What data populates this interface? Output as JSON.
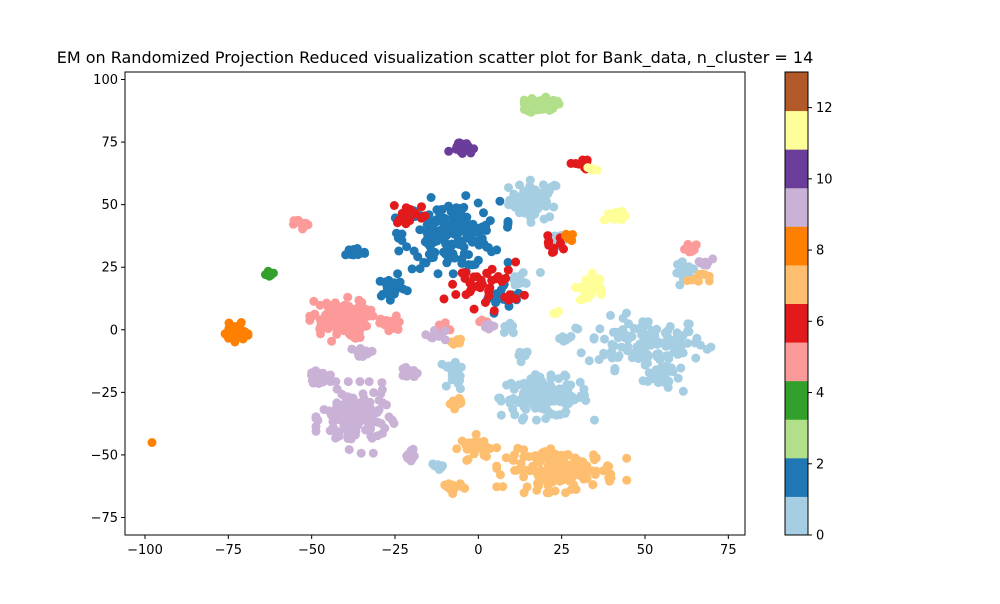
{
  "chart_data": {
    "type": "scatter",
    "title": "EM on Randomized Projection Reduced visualization scatter plot for Bank_data, n_cluster = 14",
    "xlabel": "",
    "ylabel": "",
    "xlim": [
      -106,
      80
    ],
    "ylim": [
      -82,
      103
    ],
    "xticks": [
      -100,
      -75,
      -50,
      -25,
      0,
      25,
      50,
      75
    ],
    "yticks": [
      -75,
      -50,
      -25,
      0,
      25,
      50,
      75,
      100
    ],
    "grid": false,
    "colorbar": {
      "range": [
        0,
        13
      ],
      "ticks": [
        0,
        2,
        4,
        6,
        8,
        10,
        12
      ],
      "colors": [
        "#a6cee3",
        "#1f78b4",
        "#b2df8a",
        "#33a02c",
        "#fb9a99",
        "#e31a1c",
        "#fdbf6f",
        "#ff7f00",
        "#cab2d6",
        "#6a3d9a",
        "#ffff99",
        "#b15928"
      ]
    },
    "clusters": [
      {
        "label": 0,
        "cx": 17,
        "cy": 52,
        "rx": 7,
        "ry": 7,
        "n": 60
      },
      {
        "label": 0,
        "cx": 50,
        "cy": -5,
        "rx": 16,
        "ry": 9,
        "n": 130
      },
      {
        "label": 0,
        "cx": 55,
        "cy": -18,
        "rx": 5,
        "ry": 6,
        "n": 30
      },
      {
        "label": 0,
        "cx": 23,
        "cy": 36,
        "rx": 2,
        "ry": 3,
        "n": 8
      },
      {
        "label": 0,
        "cx": 13,
        "cy": 20,
        "rx": 5,
        "ry": 3,
        "n": 10
      },
      {
        "label": 0,
        "cx": -7,
        "cy": -14,
        "rx": 3,
        "ry": 2,
        "n": 10
      },
      {
        "label": 0,
        "cx": 26,
        "cy": -3,
        "rx": 2,
        "ry": 2,
        "n": 6
      },
      {
        "label": 1,
        "cx": 20,
        "cy": -27,
        "rx": 12,
        "ry": 7,
        "n": 140
      },
      {
        "label": 1,
        "cx": 62,
        "cy": 22,
        "rx": 3,
        "ry": 5,
        "n": 15
      },
      {
        "label": 1,
        "cx": -7,
        "cy": -21,
        "rx": 2,
        "ry": 3,
        "n": 10
      },
      {
        "label": 1,
        "cx": -12,
        "cy": -54,
        "rx": 2,
        "ry": 2,
        "n": 8
      },
      {
        "label": 1,
        "cx": 13,
        "cy": -12,
        "rx": 2,
        "ry": 4,
        "n": 8
      },
      {
        "label": 1,
        "cx": 9,
        "cy": 0,
        "rx": 3,
        "ry": 2,
        "n": 6
      },
      {
        "label": 2,
        "cx": -8,
        "cy": 38,
        "rx": 13,
        "ry": 12,
        "n": 170
      },
      {
        "label": 2,
        "cx": -37,
        "cy": 31,
        "rx": 3,
        "ry": 2,
        "n": 25
      },
      {
        "label": 2,
        "cx": -26,
        "cy": 17,
        "rx": 4,
        "ry": 4,
        "n": 25
      },
      {
        "label": 2,
        "cx": 8,
        "cy": 12,
        "rx": 5,
        "ry": 6,
        "n": 20
      },
      {
        "label": 3,
        "cx": 19,
        "cy": 90,
        "rx": 4,
        "ry": 3,
        "n": 40
      },
      {
        "label": 4,
        "cx": -63,
        "cy": 23,
        "rx": 1.5,
        "ry": 1.5,
        "n": 8
      },
      {
        "label": 5,
        "cx": -42,
        "cy": 4,
        "rx": 8,
        "ry": 7,
        "n": 110
      },
      {
        "label": 5,
        "cx": -26,
        "cy": 2,
        "rx": 3,
        "ry": 3,
        "n": 25
      },
      {
        "label": 5,
        "cx": -53,
        "cy": 42,
        "rx": 2,
        "ry": 2,
        "n": 10
      },
      {
        "label": 5,
        "cx": 64,
        "cy": 32,
        "rx": 3,
        "ry": 2,
        "n": 12
      },
      {
        "label": 5,
        "cx": -11,
        "cy": 1,
        "rx": 2,
        "ry": 2,
        "n": 6
      },
      {
        "label": 5,
        "cx": 2,
        "cy": 3,
        "rx": 2,
        "ry": 1,
        "n": 5
      },
      {
        "label": 6,
        "cx": 2,
        "cy": 18,
        "rx": 10,
        "ry": 8,
        "n": 40
      },
      {
        "label": 6,
        "cx": -20,
        "cy": 47,
        "rx": 5,
        "ry": 4,
        "n": 15
      },
      {
        "label": 6,
        "cx": 31,
        "cy": 66,
        "rx": 3,
        "ry": 2,
        "n": 10
      },
      {
        "label": 6,
        "cx": 22,
        "cy": 34,
        "rx": 3,
        "ry": 3,
        "n": 10
      },
      {
        "label": 7,
        "cx": 25,
        "cy": -56,
        "rx": 15,
        "ry": 7,
        "n": 150
      },
      {
        "label": 7,
        "cx": 0,
        "cy": -47,
        "rx": 5,
        "ry": 4,
        "n": 30
      },
      {
        "label": 7,
        "cx": -8,
        "cy": -63,
        "rx": 3,
        "ry": 2,
        "n": 15
      },
      {
        "label": 7,
        "cx": -7,
        "cy": -29,
        "rx": 2,
        "ry": 2,
        "n": 10
      },
      {
        "label": 7,
        "cx": 66,
        "cy": 21,
        "rx": 3,
        "ry": 2,
        "n": 10
      },
      {
        "label": 7,
        "cx": -7,
        "cy": -5,
        "rx": 2,
        "ry": 2,
        "n": 6
      },
      {
        "label": 8,
        "cx": -73,
        "cy": -1,
        "rx": 3,
        "ry": 3,
        "n": 40
      },
      {
        "label": 8,
        "cx": 27,
        "cy": 37,
        "rx": 2,
        "ry": 2,
        "n": 6
      },
      {
        "label": 8,
        "cx": -98,
        "cy": -45,
        "rx": 0.1,
        "ry": 0.1,
        "n": 1
      },
      {
        "label": 9,
        "cx": -37,
        "cy": -35,
        "rx": 9,
        "ry": 11,
        "n": 140
      },
      {
        "label": 9,
        "cx": -48,
        "cy": -19,
        "rx": 3,
        "ry": 2,
        "n": 20
      },
      {
        "label": 9,
        "cx": -20,
        "cy": -50,
        "rx": 2,
        "ry": 3,
        "n": 15
      },
      {
        "label": 9,
        "cx": -20,
        "cy": -17,
        "rx": 2,
        "ry": 2,
        "n": 12
      },
      {
        "label": 9,
        "cx": -35,
        "cy": -9,
        "rx": 3,
        "ry": 2,
        "n": 10
      },
      {
        "label": 9,
        "cx": -13,
        "cy": -2,
        "rx": 3,
        "ry": 2,
        "n": 10
      },
      {
        "label": 9,
        "cx": 68,
        "cy": 27,
        "rx": 2,
        "ry": 2,
        "n": 8
      },
      {
        "label": 9,
        "cx": 3,
        "cy": 2,
        "rx": 2,
        "ry": 2,
        "n": 6
      },
      {
        "label": 10,
        "cx": -5,
        "cy": 73,
        "rx": 3,
        "ry": 2,
        "n": 25
      },
      {
        "label": 11,
        "cx": 33,
        "cy": 17,
        "rx": 3,
        "ry": 5,
        "n": 40
      },
      {
        "label": 11,
        "cx": 41,
        "cy": 45,
        "rx": 3,
        "ry": 2,
        "n": 20
      },
      {
        "label": 11,
        "cx": 33,
        "cy": 64,
        "rx": 2,
        "ry": 1,
        "n": 4
      },
      {
        "label": 11,
        "cx": 23,
        "cy": 7,
        "rx": 1,
        "ry": 1,
        "n": 3
      }
    ]
  }
}
